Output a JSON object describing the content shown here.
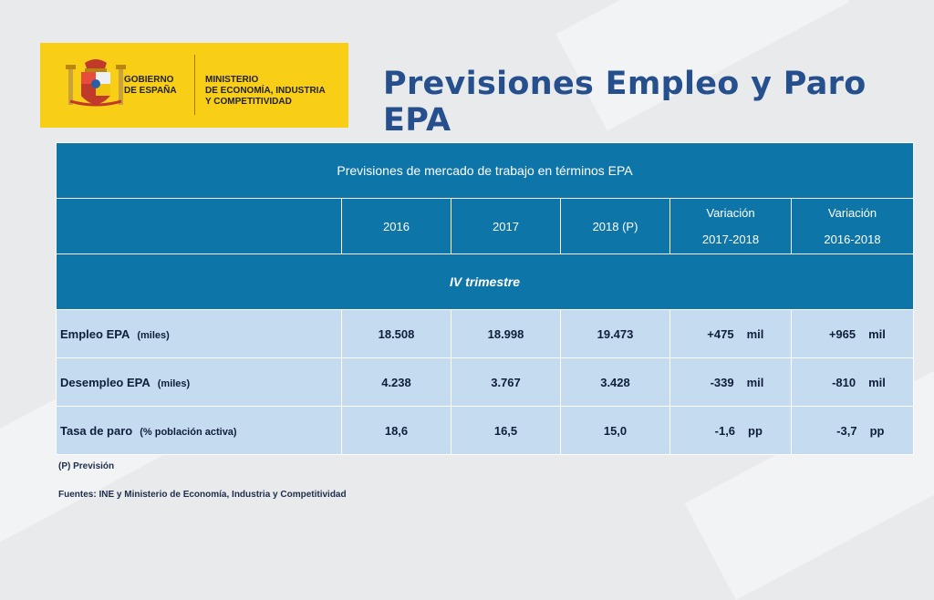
{
  "logo": {
    "gov_lines": [
      "GOBIERNO",
      "DE ESPAÑA"
    ],
    "ministry_lines": [
      "MINISTERIO",
      "DE ECONOMÍA, INDUSTRIA",
      "Y COMPETITIVIDAD"
    ],
    "background_color": "#f8cf16"
  },
  "title": "Previsiones Empleo y Paro EPA",
  "table": {
    "caption": "Previsiones de mercado de trabajo en términos EPA",
    "years": [
      "2016",
      "2017",
      "2018 (P)"
    ],
    "variations": [
      {
        "label": "Variación",
        "period": "2017-2018"
      },
      {
        "label": "Variación",
        "period": "2016-2018"
      }
    ],
    "period_label": "IV trimestre",
    "rows": [
      {
        "label": "Empleo EPA",
        "unit": "(miles)",
        "values": [
          "18.508",
          "18.998",
          "19.473"
        ],
        "var1": "+475",
        "var1_unit": "mil",
        "var2": "+965",
        "var2_unit": "mil"
      },
      {
        "label": "Desempleo EPA",
        "unit": "(miles)",
        "values": [
          "4.238",
          "3.767",
          "3.428"
        ],
        "var1": "-339",
        "var1_unit": "mil",
        "var2": "-810",
        "var2_unit": "mil"
      },
      {
        "label": "Tasa de paro",
        "unit": "(% población activa)",
        "values": [
          "18,6",
          "16,5",
          "15,0"
        ],
        "var1": "-1,6",
        "var1_unit": "pp",
        "var2": "-3,7",
        "var2_unit": "pp"
      }
    ]
  },
  "footnotes": {
    "forecast": "(P) Previsión",
    "sources": "Fuentes: INE y Ministerio de Economía, Industria y Competitividad"
  },
  "colors": {
    "header_blue": "#0e75a8",
    "body_blue": "#c5dbf0",
    "title_blue": "#264f8e"
  }
}
